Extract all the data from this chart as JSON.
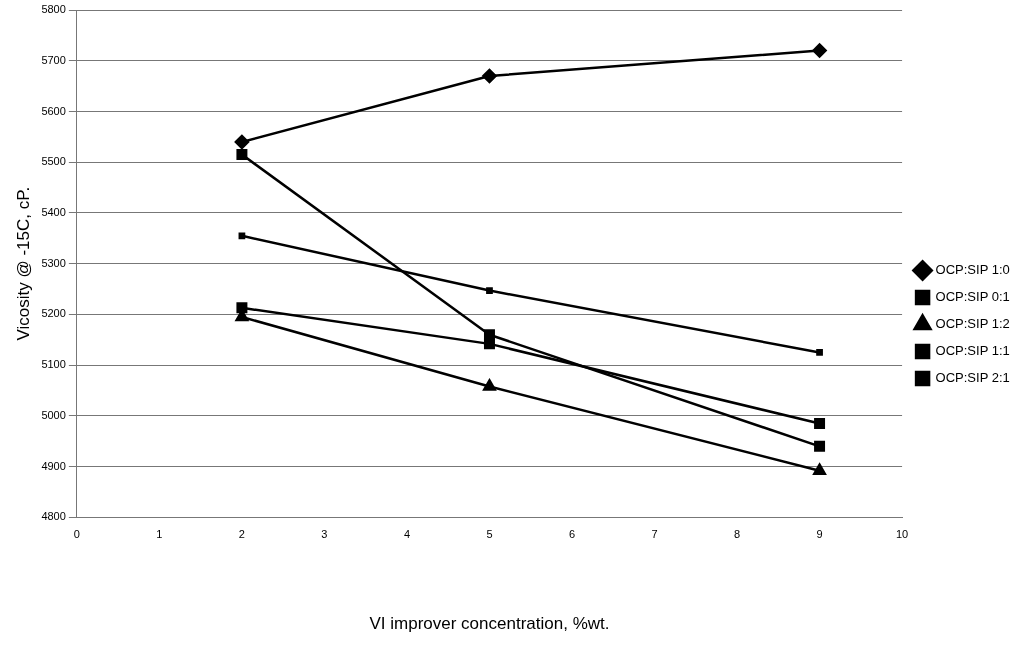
{
  "chart_data": {
    "type": "line",
    "xlabel": "VI improver concentration, %wt.",
    "ylabel": "Vicosity @ -15C, cP.",
    "x": [
      2,
      5,
      9
    ],
    "series": [
      {
        "name": "OCP:SIP 1:0",
        "color": "#000000",
        "marker": "diamond",
        "values": [
          5540,
          5670,
          5720
        ]
      },
      {
        "name": "OCP:SIP 0:1",
        "color": "#000000",
        "marker": "square",
        "values": [
          5515,
          5160,
          4940
        ]
      },
      {
        "name": "OCP:SIP 1:2",
        "color": "#000000",
        "marker": "triangle",
        "values": [
          5195,
          5058,
          4892
        ]
      },
      {
        "name": "OCP:SIP 1:1",
        "color": "#000000",
        "marker": "square",
        "values": [
          5213,
          5142,
          4985
        ]
      },
      {
        "name": "OCP:SIP 2:1",
        "color": "#000000",
        "marker": "square",
        "values": [
          5355,
          5247,
          5125
        ]
      }
    ],
    "xlim": [
      0,
      10
    ],
    "xticks": [
      0,
      1,
      2,
      3,
      4,
      5,
      6,
      7,
      8,
      9,
      10
    ],
    "ylim": [
      4800,
      5800
    ],
    "yticks": [
      4800,
      4900,
      5000,
      5100,
      5200,
      5300,
      5400,
      5500,
      5600,
      5700,
      5800
    ],
    "grid": "y",
    "legend": "right",
    "line_style": "solid"
  }
}
